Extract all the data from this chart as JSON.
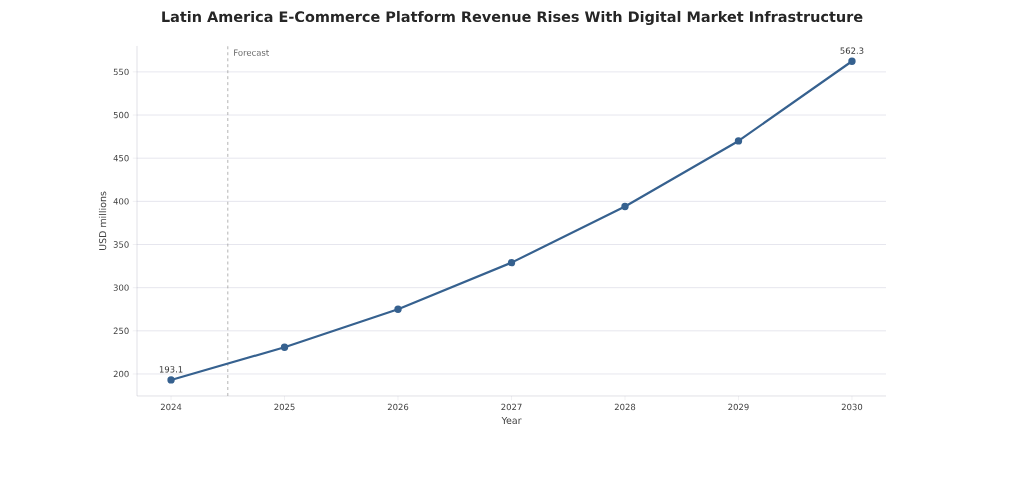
{
  "chart_data": {
    "type": "line",
    "title": "Latin America E-Commerce Platform Revenue Rises With Digital Market Infrastructure",
    "xlabel": "Year",
    "ylabel": "USD millions",
    "x": [
      2024,
      2025,
      2026,
      2027,
      2028,
      2029,
      2030
    ],
    "series": [
      {
        "color": "#36618f",
        "values": [
          193.1,
          231,
          275,
          329,
          394,
          470,
          562.3
        ],
        "value_labels": [
          "193.1",
          null,
          null,
          null,
          null,
          null,
          "562.3"
        ]
      }
    ],
    "xlim": [
      2023.7,
      2030.3
    ],
    "xticks": [
      2024,
      2025,
      2026,
      2027,
      2028,
      2029,
      2030
    ],
    "ylim": [
      174.5,
      580
    ],
    "yticks": [
      200,
      250,
      300,
      350,
      400,
      450,
      500,
      550
    ],
    "ref_lines": [
      {
        "axis": "x",
        "value": 2024.5,
        "label": "Forecast",
        "color": "#a0a0a0",
        "line_style": "dashed"
      }
    ],
    "grid": "y",
    "marker": "circle",
    "line_style": "solid"
  }
}
